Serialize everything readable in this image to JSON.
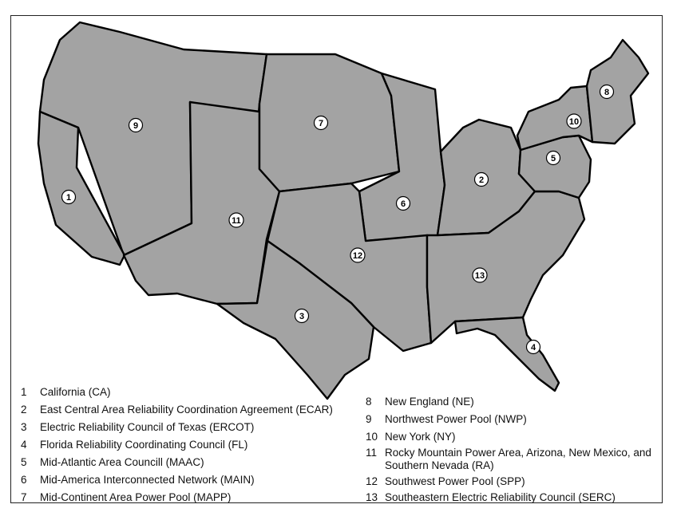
{
  "map": {
    "fill_color": "#a3a3a3",
    "border_color": "#000000",
    "regions": [
      {
        "number": "1",
        "name": "California (CA)"
      },
      {
        "number": "2",
        "name": "East Central Area Reliability Coordination Agreement (ECAR)"
      },
      {
        "number": "3",
        "name": "Electric Reliability Council of Texas (ERCOT)"
      },
      {
        "number": "4",
        "name": "Florida Reliability Coordinating Council (FL)"
      },
      {
        "number": "5",
        "name": "Mid-Atlantic Area Councill (MAAC)"
      },
      {
        "number": "6",
        "name": "Mid-America Interconnected Network (MAIN)"
      },
      {
        "number": "7",
        "name": "Mid-Continent Area Power Pool (MAPP)"
      },
      {
        "number": "8",
        "name": "New England (NE)"
      },
      {
        "number": "9",
        "name": "Northwest Power Pool (NWP)"
      },
      {
        "number": "10",
        "name": "New York (NY)"
      },
      {
        "number": "11",
        "name": "Rocky Mountain Power Area, Arizona, New Mexico, and Southern Nevada (RA)"
      },
      {
        "number": "12",
        "name": "Southwest Power Pool (SPP)"
      },
      {
        "number": "13",
        "name": "Southeastern Electric Reliability Council (SERC)"
      }
    ]
  }
}
